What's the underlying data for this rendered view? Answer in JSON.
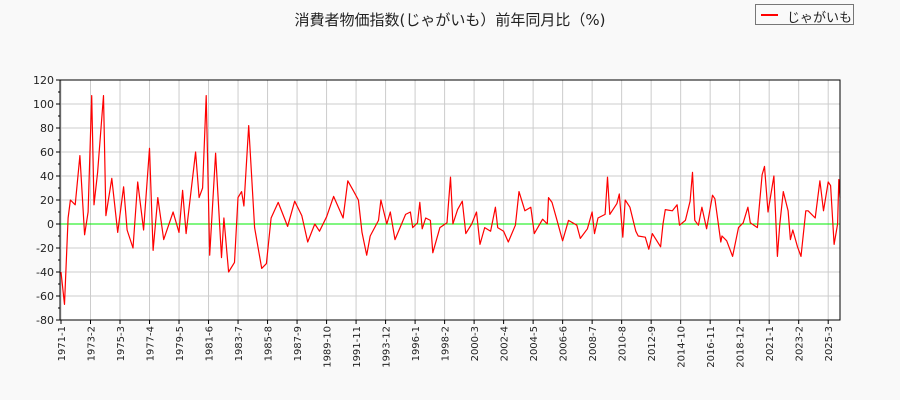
{
  "title": "消費者物価指数(じゃがいも）前年同月比（%)",
  "legend": {
    "label": "じゃがいも",
    "position": "top-right"
  },
  "colors": {
    "series": "#ff0000",
    "zero_line": "#00ee00",
    "grid": "#cccccc"
  },
  "chart_data": {
    "type": "line",
    "title": "消費者物価指数(じゃがいも）前年同月比（%)",
    "xlabel": "",
    "ylabel": "",
    "ylim": [
      -80,
      120
    ],
    "yticks": [
      -80,
      -60,
      -40,
      -20,
      0,
      20,
      40,
      60,
      80,
      100,
      120
    ],
    "xlim": [
      "1971-01",
      "2026-01"
    ],
    "xticks": [
      "1971-1",
      "1973-2",
      "1975-3",
      "1977-4",
      "1979-5",
      "1981-6",
      "1983-7",
      "1985-8",
      "1987-9",
      "1989-10",
      "1991-11",
      "1993-12",
      "1996-1",
      "1998-2",
      "2000-3",
      "2002-4",
      "2004-5",
      "2006-6",
      "2008-7",
      "2010-8",
      "2012-9",
      "2014-10",
      "2016-11",
      "2018-12",
      "2021-1",
      "2023-2",
      "2025-3"
    ],
    "grid": true,
    "reference_line": 0,
    "series": [
      {
        "name": "じゃがいも",
        "points": [
          [
            "1971-01",
            -40
          ],
          [
            "1971-04",
            -67
          ],
          [
            "1971-07",
            5
          ],
          [
            "1971-09",
            20
          ],
          [
            "1972-01",
            16
          ],
          [
            "1972-05",
            57
          ],
          [
            "1972-09",
            -9
          ],
          [
            "1972-12",
            10
          ],
          [
            "1973-03",
            107
          ],
          [
            "1973-05",
            16
          ],
          [
            "1973-08",
            43
          ],
          [
            "1974-01",
            107
          ],
          [
            "1974-03",
            7
          ],
          [
            "1974-08",
            38
          ],
          [
            "1975-01",
            -7
          ],
          [
            "1975-06",
            31
          ],
          [
            "1975-09",
            -5
          ],
          [
            "1976-02",
            -20
          ],
          [
            "1976-06",
            35
          ],
          [
            "1976-11",
            -5
          ],
          [
            "1977-04",
            63
          ],
          [
            "1977-07",
            -22
          ],
          [
            "1977-11",
            22
          ],
          [
            "1978-04",
            -13
          ],
          [
            "1978-12",
            10
          ],
          [
            "1979-05",
            -7
          ],
          [
            "1979-08",
            28
          ],
          [
            "1979-11",
            -8
          ],
          [
            "1980-07",
            60
          ],
          [
            "1980-10",
            22
          ],
          [
            "1981-01",
            30
          ],
          [
            "1981-04",
            107
          ],
          [
            "1981-07",
            -26
          ],
          [
            "1981-12",
            59
          ],
          [
            "1982-05",
            -28
          ],
          [
            "1982-07",
            5
          ],
          [
            "1982-11",
            -40
          ],
          [
            "1983-04",
            -32
          ],
          [
            "1983-07",
            22
          ],
          [
            "1983-10",
            27
          ],
          [
            "1983-12",
            15
          ],
          [
            "1984-04",
            82
          ],
          [
            "1984-09",
            -3
          ],
          [
            "1985-03",
            -37
          ],
          [
            "1985-07",
            -33
          ],
          [
            "1985-11",
            5
          ],
          [
            "1986-05",
            18
          ],
          [
            "1987-01",
            -2
          ],
          [
            "1987-07",
            19
          ],
          [
            "1988-01",
            7
          ],
          [
            "1988-06",
            -15
          ],
          [
            "1988-12",
            0
          ],
          [
            "1989-04",
            -6
          ],
          [
            "1989-10",
            6
          ],
          [
            "1990-04",
            23
          ],
          [
            "1990-12",
            5
          ],
          [
            "1991-04",
            36
          ],
          [
            "1991-08",
            29
          ],
          [
            "1992-01",
            20
          ],
          [
            "1992-04",
            -7
          ],
          [
            "1992-08",
            -26
          ],
          [
            "1992-11",
            -10
          ],
          [
            "1993-06",
            3
          ],
          [
            "1993-08",
            20
          ],
          [
            "1994-01",
            0
          ],
          [
            "1994-04",
            10
          ],
          [
            "1994-08",
            -13
          ],
          [
            "1995-05",
            8
          ],
          [
            "1995-09",
            10
          ],
          [
            "1995-11",
            -3
          ],
          [
            "1996-03",
            1
          ],
          [
            "1996-05",
            18
          ],
          [
            "1996-07",
            -4
          ],
          [
            "1996-10",
            5
          ],
          [
            "1997-02",
            3
          ],
          [
            "1997-04",
            -24
          ],
          [
            "1997-10",
            -3
          ],
          [
            "1998-04",
            1
          ],
          [
            "1998-07",
            39
          ],
          [
            "1998-09",
            0
          ],
          [
            "1999-01",
            12
          ],
          [
            "1999-05",
            19
          ],
          [
            "1999-08",
            -8
          ],
          [
            "2000-01",
            0
          ],
          [
            "2000-05",
            10
          ],
          [
            "2000-08",
            -17
          ],
          [
            "2000-12",
            -3
          ],
          [
            "2001-05",
            -6
          ],
          [
            "2001-09",
            14
          ],
          [
            "2001-11",
            -3
          ],
          [
            "2002-04",
            -6
          ],
          [
            "2002-08",
            -15
          ],
          [
            "2003-02",
            -1
          ],
          [
            "2003-05",
            27
          ],
          [
            "2003-10",
            11
          ],
          [
            "2004-03",
            14
          ],
          [
            "2004-06",
            -8
          ],
          [
            "2005-01",
            4
          ],
          [
            "2005-05",
            0
          ],
          [
            "2005-06",
            22
          ],
          [
            "2005-09",
            18
          ],
          [
            "2006-01",
            4
          ],
          [
            "2006-06",
            -14
          ],
          [
            "2006-11",
            3
          ],
          [
            "2007-06",
            -1
          ],
          [
            "2007-09",
            -12
          ],
          [
            "2008-03",
            -4
          ],
          [
            "2008-07",
            10
          ],
          [
            "2008-09",
            -8
          ],
          [
            "2008-12",
            5
          ],
          [
            "2009-06",
            8
          ],
          [
            "2009-08",
            39
          ],
          [
            "2009-10",
            8
          ],
          [
            "2010-04",
            17
          ],
          [
            "2010-06",
            25
          ],
          [
            "2010-09",
            -11
          ],
          [
            "2010-11",
            20
          ],
          [
            "2011-03",
            14
          ],
          [
            "2011-08",
            -6
          ],
          [
            "2011-10",
            -10
          ],
          [
            "2012-04",
            -11
          ],
          [
            "2012-07",
            -21
          ],
          [
            "2012-10",
            -8
          ],
          [
            "2013-05",
            -19
          ],
          [
            "2013-07",
            0
          ],
          [
            "2013-09",
            12
          ],
          [
            "2014-03",
            11
          ],
          [
            "2014-07",
            16
          ],
          [
            "2014-09",
            -1
          ],
          [
            "2015-02",
            3
          ],
          [
            "2015-06",
            19
          ],
          [
            "2015-08",
            43
          ],
          [
            "2015-10",
            3
          ],
          [
            "2016-01",
            -1
          ],
          [
            "2016-04",
            14
          ],
          [
            "2016-08",
            -4
          ],
          [
            "2017-01",
            24
          ],
          [
            "2017-03",
            21
          ],
          [
            "2017-08",
            -15
          ],
          [
            "2017-09",
            -10
          ],
          [
            "2018-01",
            -14
          ],
          [
            "2018-06",
            -27
          ],
          [
            "2018-11",
            -3
          ],
          [
            "2019-03",
            1
          ],
          [
            "2019-07",
            14
          ],
          [
            "2019-09",
            1
          ],
          [
            "2020-03",
            -3
          ],
          [
            "2020-07",
            41
          ],
          [
            "2020-09",
            48
          ],
          [
            "2020-12",
            10
          ],
          [
            "2021-05",
            40
          ],
          [
            "2021-08",
            -27
          ],
          [
            "2021-10",
            0
          ],
          [
            "2022-01",
            27
          ],
          [
            "2022-05",
            11
          ],
          [
            "2022-07",
            -13
          ],
          [
            "2022-09",
            -5
          ],
          [
            "2023-01",
            -19
          ],
          [
            "2023-04",
            -27
          ],
          [
            "2023-08",
            11
          ],
          [
            "2023-10",
            11
          ],
          [
            "2024-04",
            5
          ],
          [
            "2024-08",
            36
          ],
          [
            "2024-11",
            11
          ],
          [
            "2025-03",
            35
          ],
          [
            "2025-05",
            32
          ],
          [
            "2025-08",
            -17
          ],
          [
            "2025-11",
            0
          ],
          [
            "2025-12",
            37
          ],
          [
            "2026-01",
            22
          ]
        ]
      }
    ]
  }
}
